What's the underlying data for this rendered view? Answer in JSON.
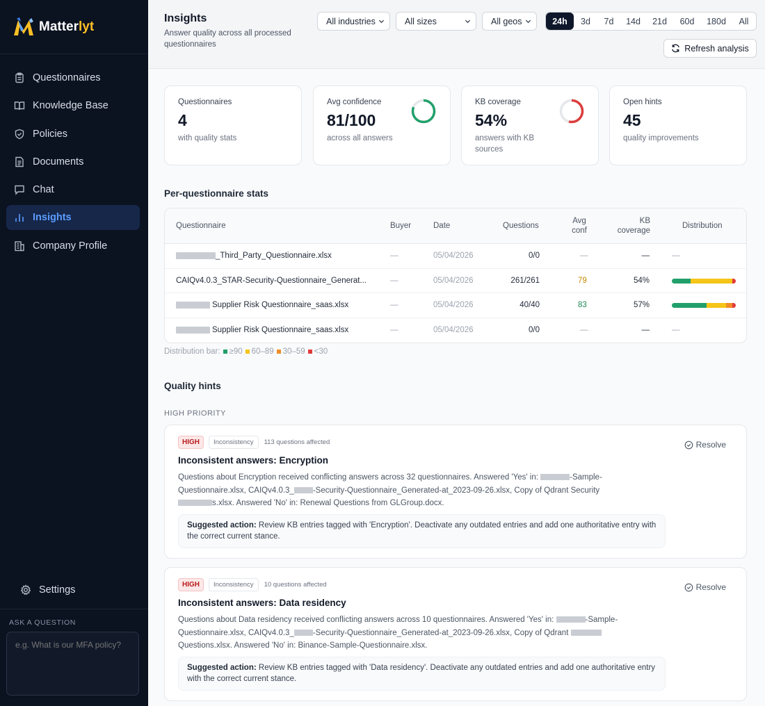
{
  "brand": {
    "name_main": "Matter",
    "name_accent": "lyt"
  },
  "sidebar": {
    "items": [
      {
        "label": "Questionnaires",
        "icon": "clipboard-icon"
      },
      {
        "label": "Knowledge Base",
        "icon": "book-icon"
      },
      {
        "label": "Policies",
        "icon": "shield-icon"
      },
      {
        "label": "Documents",
        "icon": "document-icon"
      },
      {
        "label": "Chat",
        "icon": "chat-icon"
      },
      {
        "label": "Insights",
        "icon": "bar-chart-icon",
        "active": true
      },
      {
        "label": "Company Profile",
        "icon": "building-icon"
      }
    ],
    "settings_label": "Settings",
    "ask_label": "ASK A QUESTION",
    "ask_placeholder": "e.g. What is our MFA policy?"
  },
  "header": {
    "title": "Insights",
    "subtitle": "Answer quality across all processed questionnaires",
    "filters": {
      "industry": "All industries",
      "size": "All sizes",
      "geo": "All geos"
    },
    "ranges": [
      "24h",
      "3d",
      "7d",
      "14d",
      "21d",
      "60d",
      "180d",
      "All"
    ],
    "active_range": "24h",
    "refresh_label": "Refresh analysis"
  },
  "stats": [
    {
      "label": "Questionnaires",
      "value": "4",
      "desc": "with quality stats"
    },
    {
      "label": "Avg confidence",
      "value": "81/100",
      "desc": "across all answers",
      "ring_fraction": 0.81,
      "ring_color": "#22a06b"
    },
    {
      "label": "KB coverage",
      "value": "54%",
      "desc": "answers with KB sources",
      "ring_fraction": 0.54,
      "ring_color": "#dc3d3d"
    },
    {
      "label": "Open hints",
      "value": "45",
      "desc": "quality improvements"
    }
  ],
  "table": {
    "title": "Per-questionnaire stats",
    "columns": {
      "questionnaire": "Questionnaire",
      "buyer": "Buyer",
      "date": "Date",
      "questions": "Questions",
      "avg_conf_1": "Avg",
      "avg_conf_2": "conf",
      "kb_1": "KB",
      "kb_2": "coverage",
      "distribution": "Distribution"
    },
    "rows": [
      {
        "name": "_Third_Party_Questionnaire.xlsx",
        "buyer": "—",
        "date": "05/04/2026",
        "questions": "0/0",
        "avg_conf": "—",
        "kb": "—",
        "dist_text": "—"
      },
      {
        "name": "CAIQv4.0.3_STAR-Security-Questionnaire_Generat...",
        "buyer": "—",
        "date": "05/04/2026",
        "questions": "261/261",
        "avg_conf": "79",
        "kb": "54%",
        "conf_color": "#c98a06",
        "dist": [
          0.29,
          0.66,
          0.0,
          0.05
        ]
      },
      {
        "name": "Supplier Risk Questionnaire_saas.xlsx",
        "buyer": "—",
        "date": "05/04/2026",
        "questions": "40/40",
        "avg_conf": "83",
        "kb": "57%",
        "conf_color": "#1f8a55",
        "dist": [
          0.54,
          0.31,
          0.1,
          0.05
        ]
      },
      {
        "name": "Supplier Risk Questionnaire_saas.xlsx",
        "buyer": "—",
        "date": "05/04/2026",
        "questions": "0/0",
        "avg_conf": "—",
        "kb": "—",
        "dist_text": "—"
      }
    ],
    "legend": {
      "prefix": "Distribution bar:",
      "items": [
        {
          "label": "≥90",
          "color": "#22a06b"
        },
        {
          "label": "60–89",
          "color": "#f5c518"
        },
        {
          "label": "30–59",
          "color": "#f28c28"
        },
        {
          "label": "<30",
          "color": "#e23b3b"
        }
      ]
    }
  },
  "hints": {
    "title": "Quality hints",
    "priority_label": "HIGH PRIORITY",
    "resolve_label": "Resolve",
    "items": [
      {
        "severity": "HIGH",
        "category": "Inconsistency",
        "affected": "113 questions affected",
        "title": "Inconsistent answers: Encryption",
        "body_parts": [
          "Questions about Encryption received conflicting answers across 32 questionnaires. Answered 'Yes' in: ",
          "-Sample-Questionnaire.xlsx, CAIQv4.0.3_",
          "-Security-Questionnaire_Generated-at_2023-09-26.xlsx, Copy of Qdrant Security ",
          "s.xlsx. Answered 'No' in: Renewal Questions from GLGroup.docx."
        ],
        "suggest_label": "Suggested action:",
        "suggest_text": " Review KB entries tagged with 'Encryption'. Deactivate any outdated entries and add one authoritative entry with the correct current stance."
      },
      {
        "severity": "HIGH",
        "category": "Inconsistency",
        "affected": "10 questions affected",
        "title": "Inconsistent answers: Data residency",
        "body_parts": [
          "Questions about Data residency received conflicting answers across 10 questionnaires. Answered 'Yes' in: ",
          "-Sample-Questionnaire.xlsx, CAIQv4.0.3_",
          "-Security-Questionnaire_Generated-at_2023-09-26.xlsx, Copy of Qdrant ",
          " Questions.xlsx. Answered 'No' in: Binance-Sample-Questionnaire.xlsx."
        ],
        "suggest_label": "Suggested action:",
        "suggest_text": " Review KB entries tagged with 'Data residency'. Deactivate any outdated entries and add one authoritative entry with the correct current stance."
      }
    ]
  }
}
